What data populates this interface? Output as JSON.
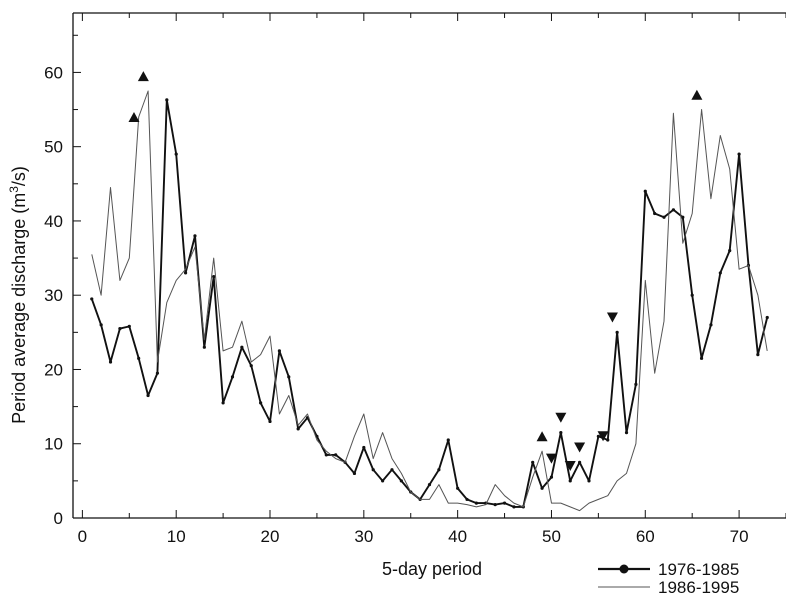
{
  "chart_data": {
    "type": "line",
    "xlabel": "5-day period",
    "ylabel_main": "Period average discharge (m",
    "ylabel_sup": "3",
    "ylabel_tail": "/s)",
    "xlim": [
      -1,
      75
    ],
    "ylim": [
      0,
      68
    ],
    "x_ticks": [
      0,
      10,
      20,
      30,
      40,
      50,
      60,
      70
    ],
    "y_ticks": [
      0,
      10,
      20,
      30,
      40,
      50,
      60
    ],
    "grid": false,
    "legend_position": "bottom-right",
    "series": [
      {
        "name": "1976-1985",
        "color": "#111111",
        "weight": "heavy",
        "x": [
          1,
          2,
          3,
          4,
          5,
          6,
          7,
          8,
          9,
          10,
          11,
          12,
          13,
          14,
          15,
          16,
          17,
          18,
          19,
          20,
          21,
          22,
          23,
          24,
          25,
          26,
          27,
          28,
          29,
          30,
          31,
          32,
          33,
          34,
          35,
          36,
          37,
          38,
          39,
          40,
          41,
          42,
          43,
          44,
          45,
          46,
          47,
          48,
          49,
          50,
          51,
          52,
          53,
          54,
          55,
          56,
          57,
          58,
          59,
          60,
          61,
          62,
          63,
          64,
          65,
          66,
          67,
          68,
          69,
          70,
          71,
          72,
          73
        ],
        "values": [
          29.5,
          26,
          21,
          25.5,
          25.8,
          21.5,
          16.5,
          19.5,
          56.3,
          49,
          33,
          38,
          23,
          32.5,
          15.5,
          19,
          23,
          20.5,
          15.5,
          13,
          22.5,
          19,
          12,
          13.5,
          11,
          8.5,
          8.5,
          7.5,
          6,
          9.5,
          6.5,
          5,
          6.5,
          5,
          3.5,
          2.5,
          4.5,
          6.5,
          10.5,
          4,
          2.5,
          2,
          2,
          1.8,
          2,
          1.5,
          1.5,
          7.5,
          4,
          5.5,
          11.5,
          5,
          7.5,
          5,
          11,
          10.5,
          25,
          11.5,
          18,
          44,
          41,
          40.5,
          41.5,
          40.5,
          30,
          21.5,
          26,
          33,
          36,
          49,
          34,
          22,
          27
        ]
      },
      {
        "name": "1986-1995",
        "color": "#555555",
        "weight": "light",
        "x": [
          1,
          2,
          3,
          4,
          5,
          6,
          7,
          8,
          9,
          10,
          11,
          12,
          13,
          14,
          15,
          16,
          17,
          18,
          19,
          20,
          21,
          22,
          23,
          24,
          25,
          26,
          27,
          28,
          29,
          30,
          31,
          32,
          33,
          34,
          35,
          36,
          37,
          38,
          39,
          40,
          41,
          42,
          43,
          44,
          45,
          46,
          47,
          48,
          49,
          50,
          51,
          52,
          53,
          54,
          55,
          56,
          57,
          58,
          59,
          60,
          61,
          62,
          63,
          64,
          65,
          66,
          67,
          68,
          69,
          70,
          71,
          72,
          73
        ],
        "values": [
          35.5,
          30,
          44.5,
          32,
          35,
          54,
          57.5,
          21,
          29,
          32,
          33.5,
          36.5,
          24,
          35,
          22.5,
          23,
          26.5,
          21,
          22,
          24.5,
          14,
          16.5,
          12.5,
          14,
          10.5,
          9,
          8,
          7.5,
          11,
          14,
          8,
          11.5,
          8,
          6,
          3.5,
          2.5,
          2.5,
          4.5,
          2,
          2,
          1.8,
          1.5,
          1.8,
          4.5,
          3,
          2,
          1.5,
          5.5,
          9,
          2,
          2,
          1.5,
          1,
          2,
          2.5,
          3,
          5,
          6,
          10,
          32,
          19.5,
          26.5,
          54.5,
          37,
          41,
          55,
          43,
          51.5,
          47,
          33.5,
          34,
          30,
          22.5
        ]
      }
    ],
    "markers": [
      {
        "shape": "up",
        "x": 5.5,
        "y": 54
      },
      {
        "shape": "up",
        "x": 6.5,
        "y": 59.5
      },
      {
        "shape": "up",
        "x": 65.5,
        "y": 57
      },
      {
        "shape": "up",
        "x": 49,
        "y": 11
      },
      {
        "shape": "down",
        "x": 50,
        "y": 8
      },
      {
        "shape": "down",
        "x": 51,
        "y": 13.5
      },
      {
        "shape": "down",
        "x": 52,
        "y": 7
      },
      {
        "shape": "down",
        "x": 53,
        "y": 9.5
      },
      {
        "shape": "down",
        "x": 55.5,
        "y": 11
      },
      {
        "shape": "down",
        "x": 56.5,
        "y": 27
      }
    ]
  }
}
